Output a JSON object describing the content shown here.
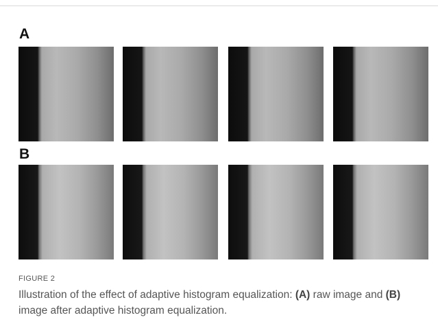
{
  "figure": {
    "panels": [
      {
        "label": "A"
      },
      {
        "label": "B"
      }
    ],
    "label": "FIGURE 2",
    "caption": [
      "Illustration of the effect of adaptive histogram equalization: ",
      "(A)",
      " raw image and ",
      "(B)",
      " image after adaptive histogram equalization."
    ]
  }
}
